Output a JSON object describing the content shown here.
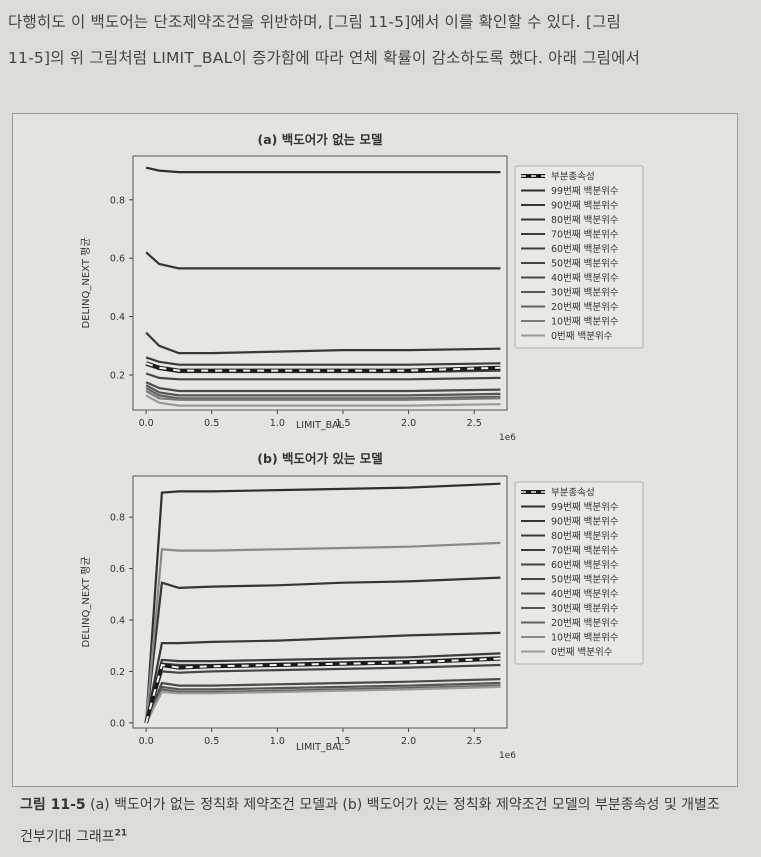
{
  "intro": {
    "line1": "다행히도 이 백도어는 단조제약조건을 위반하며, [그림 11-5]에서 이를 확인할 수 있다. [그림",
    "line2": "11-5]의 위 그림처럼 LIMIT_BAL이 증가함에 따라 연체 확률이 감소하도록 했다. 아래 그림에서"
  },
  "caption": {
    "label": "그림 11-5",
    "text": " (a) 백도어가 없는 정칙화 제약조건 모델과 (b) 백도어가 있는 정칙화 제약조건 모델의 부분종속성 및 개별조",
    "line2": "건부기대 그래프",
    "footnote": "21"
  },
  "chart_data": [
    {
      "type": "line",
      "title": "(a) 백도어가 없는 모델",
      "xlabel": "LIMIT_BAL",
      "ylabel": "DELINQ_NEXT 평균",
      "x_offset_label": "1e6",
      "xlim": [
        -0.1,
        2.75
      ],
      "ylim": [
        0.08,
        0.95
      ],
      "xticks": [
        "0.0",
        "0.5",
        "1.0",
        "1.5",
        "2.0",
        "2.5"
      ],
      "yticks": [
        "0.2",
        "0.4",
        "0.6",
        "0.8"
      ],
      "x": [
        0.0,
        0.1,
        0.25,
        0.5,
        1.0,
        1.5,
        2.0,
        2.7
      ],
      "legend_position": "right",
      "series": [
        {
          "name": "부분종속성",
          "color": "#202020",
          "dashed": true,
          "values": [
            0.24,
            0.225,
            0.215,
            0.215,
            0.215,
            0.215,
            0.215,
            0.225
          ]
        },
        {
          "name": "99번째 백분위수",
          "color": "#303030",
          "values": [
            0.91,
            0.9,
            0.895,
            0.895,
            0.895,
            0.895,
            0.895,
            0.895
          ]
        },
        {
          "name": "90번째 백분위수",
          "color": "#353535",
          "values": [
            0.62,
            0.58,
            0.565,
            0.565,
            0.565,
            0.565,
            0.565,
            0.565
          ]
        },
        {
          "name": "80번째 백분위수",
          "color": "#383838",
          "values": [
            0.345,
            0.3,
            0.275,
            0.275,
            0.28,
            0.285,
            0.285,
            0.29
          ]
        },
        {
          "name": "70번째 백분위수",
          "color": "#3c3c3c",
          "values": [
            0.26,
            0.245,
            0.235,
            0.235,
            0.235,
            0.235,
            0.235,
            0.24
          ]
        },
        {
          "name": "60번째 백분위수",
          "color": "#404040",
          "values": [
            0.235,
            0.22,
            0.21,
            0.21,
            0.21,
            0.21,
            0.21,
            0.215
          ]
        },
        {
          "name": "50번째 백분위수",
          "color": "#454545",
          "values": [
            0.205,
            0.19,
            0.185,
            0.185,
            0.185,
            0.185,
            0.185,
            0.19
          ]
        },
        {
          "name": "40번째 백분위수",
          "color": "#4a4a4a",
          "values": [
            0.175,
            0.155,
            0.145,
            0.145,
            0.145,
            0.145,
            0.145,
            0.15
          ]
        },
        {
          "name": "30번째 백분위수",
          "color": "#555555",
          "values": [
            0.165,
            0.14,
            0.13,
            0.13,
            0.13,
            0.13,
            0.13,
            0.135
          ]
        },
        {
          "name": "20번째 백분위수",
          "color": "#626262",
          "values": [
            0.155,
            0.13,
            0.12,
            0.12,
            0.12,
            0.12,
            0.12,
            0.125
          ]
        },
        {
          "name": "10번째 백분위수",
          "color": "#7a7a7a",
          "values": [
            0.145,
            0.12,
            0.115,
            0.115,
            0.115,
            0.115,
            0.115,
            0.12
          ]
        },
        {
          "name": "0번째 백분위수",
          "color": "#9a9a9a",
          "values": [
            0.13,
            0.105,
            0.095,
            0.095,
            0.095,
            0.095,
            0.095,
            0.1
          ]
        }
      ]
    },
    {
      "type": "line",
      "title": "(b) 백도어가 있는 모델",
      "xlabel": "LIMIT_BAL",
      "ylabel": "DELINQ_NEXT 평균",
      "x_offset_label": "1e6",
      "xlim": [
        -0.1,
        2.75
      ],
      "ylim": [
        -0.02,
        0.96
      ],
      "xticks": [
        "0.0",
        "0.5",
        "1.0",
        "1.5",
        "2.0",
        "2.5"
      ],
      "yticks": [
        "0.0",
        "0.2",
        "0.4",
        "0.6",
        "0.8"
      ],
      "x": [
        0.0,
        0.12,
        0.25,
        0.5,
        1.0,
        1.5,
        2.0,
        2.7
      ],
      "legend_position": "right",
      "series": [
        {
          "name": "부분종속성",
          "color": "#202020",
          "dashed": true,
          "values": [
            0.0,
            0.225,
            0.215,
            0.22,
            0.225,
            0.23,
            0.235,
            0.25
          ]
        },
        {
          "name": "99번째 백분위수",
          "color": "#303030",
          "values": [
            0.0,
            0.895,
            0.9,
            0.9,
            0.905,
            0.91,
            0.915,
            0.93
          ]
        },
        {
          "name": "90번째 백분위수",
          "color": "#353535",
          "values": [
            0.0,
            0.545,
            0.525,
            0.53,
            0.535,
            0.545,
            0.55,
            0.565
          ]
        },
        {
          "name": "80번째 백분위수",
          "color": "#383838",
          "values": [
            0.0,
            0.31,
            0.31,
            0.315,
            0.32,
            0.33,
            0.34,
            0.35
          ]
        },
        {
          "name": "70번째 백분위수",
          "color": "#3c3c3c",
          "values": [
            0.0,
            0.245,
            0.24,
            0.24,
            0.245,
            0.25,
            0.255,
            0.27
          ]
        },
        {
          "name": "60번째 백분위수",
          "color": "#404040",
          "values": [
            0.0,
            0.23,
            0.225,
            0.225,
            0.23,
            0.235,
            0.24,
            0.255
          ]
        },
        {
          "name": "50번째 백분위수",
          "color": "#454545",
          "values": [
            0.0,
            0.2,
            0.195,
            0.2,
            0.205,
            0.21,
            0.215,
            0.225
          ]
        },
        {
          "name": "40번째 백분위수",
          "color": "#4a4a4a",
          "values": [
            0.0,
            0.155,
            0.145,
            0.145,
            0.15,
            0.155,
            0.16,
            0.17
          ]
        },
        {
          "name": "30번째 백분위수",
          "color": "#555555",
          "values": [
            0.0,
            0.14,
            0.13,
            0.13,
            0.135,
            0.14,
            0.145,
            0.155
          ]
        },
        {
          "name": "20번째 백분위수",
          "color": "#626262",
          "values": [
            0.0,
            0.13,
            0.12,
            0.12,
            0.125,
            0.13,
            0.135,
            0.145
          ]
        },
        {
          "name": "10번째 백분위수",
          "color": "#8a8a8a",
          "values": [
            0.0,
            0.675,
            0.67,
            0.67,
            0.675,
            0.68,
            0.685,
            0.7
          ]
        },
        {
          "name": "0번째 백분위수",
          "color": "#9a9a9a",
          "values": [
            0.0,
            0.12,
            0.115,
            0.115,
            0.12,
            0.125,
            0.13,
            0.14
          ]
        }
      ]
    }
  ]
}
